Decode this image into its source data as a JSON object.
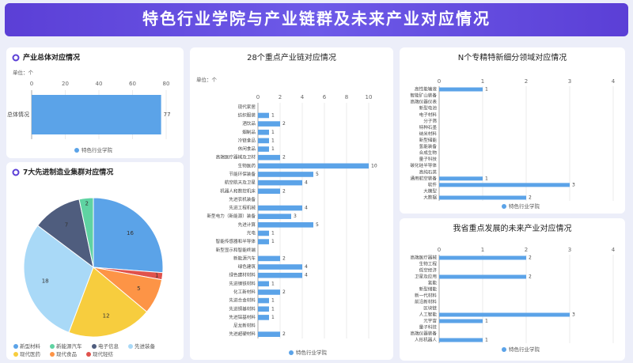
{
  "title": "特色行业学院与产业链群及未来产业对应情况",
  "chart_data": [
    {
      "type": "bar",
      "title": "产业总体对应情况",
      "unit": "单位：个",
      "categories": [
        "总体情况"
      ],
      "series": [
        {
          "name": "特色行业学院",
          "color": "#5ba3e8",
          "values": [
            77
          ]
        }
      ],
      "xlim": [
        0,
        80
      ],
      "xticks": [
        0,
        20,
        40,
        60,
        80
      ],
      "grid": true
    },
    {
      "type": "pie",
      "title": "7大先进制造业集群对应情况",
      "categories": [
        "新型材料",
        "新能源汽车",
        "电子信息",
        "先进装备",
        "现代医药",
        "现代食品",
        "现代轻纺"
      ],
      "values": [
        16,
        2,
        7,
        18,
        12,
        5,
        1
      ],
      "colors": [
        "#5ba3e8",
        "#5fd3a2",
        "#4f5d7e",
        "#a9d9f7",
        "#f7cd3e",
        "#fd9446",
        "#e0524c"
      ]
    },
    {
      "type": "bar",
      "title": "28个重点产业链对应情况",
      "unit": "单位：个",
      "categories": [
        "现代家居",
        "纺织服装",
        "酒饮品",
        "烟制品",
        "冷链食品",
        "休闲食品",
        "高端医疗器械及卫材",
        "生物医药",
        "节能环保装备",
        "航空航天及卫星",
        "机器人和数控机床",
        "先进农机装备",
        "先进工程机械",
        "新型电力（新能源）装备",
        "先进计算",
        "光电",
        "智能传感器和半导体",
        "新型显示和智能终端",
        "新能源汽车",
        "绿色建筑",
        "绿色建材材料",
        "先进钢铁材料",
        "化工新材料",
        "先进合金材料",
        "先进铜基材料",
        "先进铝基材料",
        "尼龙新材料",
        "先进超硬材料"
      ],
      "series": [
        {
          "name": "特色行业学院",
          "color": "#5ba3e8",
          "values": [
            null,
            1,
            2,
            1,
            1,
            1,
            2,
            10,
            5,
            4,
            2,
            null,
            4,
            3,
            5,
            1,
            1,
            null,
            2,
            4,
            4,
            1,
            2,
            1,
            1,
            1,
            null,
            2
          ]
        }
      ],
      "xlim": [
        0,
        10
      ],
      "xticks": [
        0,
        2,
        4,
        6,
        8,
        10
      ],
      "grid": true
    },
    {
      "type": "bar",
      "title": "N个专精特新细分领域对应情况",
      "categories": [
        "高性能输液",
        "智能矿山装备",
        "高端仪器仪表",
        "新型电池",
        "电子材料",
        "分子筛",
        "特种石墨",
        "纳米材料",
        "新型储能",
        "氢能装备",
        "合成生物",
        "量子科技",
        "碳化硅半导体",
        "高纯石英",
        "通用航空装备",
        "软件",
        "大模型",
        "大数据"
      ],
      "series": [
        {
          "name": "特色行业学院",
          "color": "#5ba3e8",
          "values": [
            1,
            null,
            null,
            null,
            null,
            null,
            null,
            null,
            null,
            null,
            null,
            null,
            null,
            null,
            1,
            3,
            null,
            2
          ]
        }
      ],
      "xlim": [
        0,
        4
      ],
      "xticks": [
        0,
        1,
        2,
        3,
        4
      ],
      "grid": true
    },
    {
      "type": "bar",
      "title": "我省重点发展的未来产业对应情况",
      "categories": [
        "高端医疗器械",
        "生物工程",
        "低空经济",
        "卫星及应用",
        "氢能",
        "新型储能",
        "新一代材料",
        "前沿新材料",
        "区块链",
        "人工智能",
        "元宇宙",
        "量子科技",
        "高端仪器装备",
        "人形机器人"
      ],
      "series": [
        {
          "name": "特色行业学院",
          "color": "#5ba3e8",
          "values": [
            2,
            null,
            null,
            2,
            null,
            null,
            null,
            null,
            null,
            3,
            1,
            null,
            null,
            1
          ]
        }
      ],
      "xlim": [
        0,
        4
      ],
      "xticks": [
        0,
        1,
        2,
        3,
        4
      ],
      "grid": true
    }
  ]
}
